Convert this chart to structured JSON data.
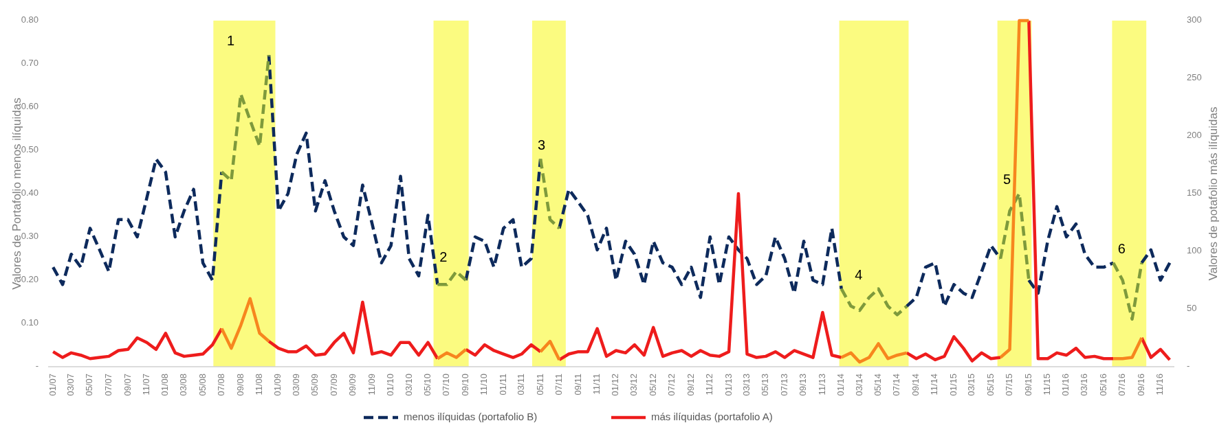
{
  "chart_data": {
    "type": "line",
    "ylabel": "Valores de Portafolio menos ilíquidas",
    "y2label": "Valores de potafolio más ilíquidas",
    "x": [
      "2007-01",
      "2007-02",
      "2007-03",
      "2007-04",
      "2007-05",
      "2007-06",
      "2007-07",
      "2007-08",
      "2007-09",
      "2007-10",
      "2007-11",
      "2007-12",
      "2008-01",
      "2008-02",
      "2008-03",
      "2008-04",
      "2008-05",
      "2008-06",
      "2008-07",
      "2008-08",
      "2008-09",
      "2008-10",
      "2008-11",
      "2008-12",
      "2009-01",
      "2009-02",
      "2009-03",
      "2009-04",
      "2009-05",
      "2009-06",
      "2009-07",
      "2009-08",
      "2009-09",
      "2009-10",
      "2009-11",
      "2009-12",
      "2010-01",
      "2010-02",
      "2010-03",
      "2010-04",
      "2010-05",
      "2010-06",
      "2010-07",
      "2010-08",
      "2010-09",
      "2010-10",
      "2010-11",
      "2010-12",
      "2011-01",
      "2011-02",
      "2011-03",
      "2011-04",
      "2011-05",
      "2011-06",
      "2011-07",
      "2011-08",
      "2011-09",
      "2011-10",
      "2011-11",
      "2011-12",
      "2012-01",
      "2012-02",
      "2012-03",
      "2012-04",
      "2012-05",
      "2012-06",
      "2012-07",
      "2012-08",
      "2012-09",
      "2012-10",
      "2012-11",
      "2012-12",
      "2013-01",
      "2013-02",
      "2013-03",
      "2013-04",
      "2013-05",
      "2013-06",
      "2013-07",
      "2013-08",
      "2013-09",
      "2013-10",
      "2013-11",
      "2013-12",
      "2014-01",
      "2014-02",
      "2014-03",
      "2014-04",
      "2014-05",
      "2014-06",
      "2014-07",
      "2014-08",
      "2014-09",
      "2014-10",
      "2014-11",
      "2014-12",
      "2015-01",
      "2015-02",
      "2015-03",
      "2015-04",
      "2015-05",
      "2015-06",
      "2015-07",
      "2015-08",
      "2015-09",
      "2015-10",
      "2015-11",
      "2015-12",
      "2016-01",
      "2016-02",
      "2016-03",
      "2016-04",
      "2016-05",
      "2016-06",
      "2016-07",
      "2016-08",
      "2016-09",
      "2016-10",
      "2016-11",
      "2016-12"
    ],
    "series": [
      {
        "name": "menos ilíquidas (portafolio B)",
        "color": "#0d2a5c",
        "line_style": "dashed",
        "axis": "y",
        "values": [
          0.23,
          0.19,
          0.26,
          0.23,
          0.32,
          0.27,
          0.22,
          0.34,
          0.34,
          0.3,
          0.39,
          0.48,
          0.45,
          0.3,
          0.36,
          0.41,
          0.24,
          0.2,
          0.45,
          null,
          null,
          null,
          null,
          0.72,
          0.36,
          0.4,
          0.49,
          0.54,
          0.36,
          0.43,
          0.36,
          0.3,
          0.28,
          0.42,
          0.33,
          0.24,
          0.28,
          0.44,
          0.25,
          0.21,
          0.35,
          0.19,
          null,
          null,
          0.2,
          0.3,
          0.29,
          0.23,
          0.32,
          0.34,
          0.23,
          0.25,
          0.48,
          null,
          0.32,
          0.41,
          0.38,
          0.35,
          0.27,
          0.32,
          0.2,
          0.29,
          0.26,
          0.19,
          0.29,
          0.24,
          0.23,
          0.19,
          0.23,
          0.16,
          0.3,
          0.19,
          0.3,
          0.27,
          0.25,
          0.19,
          0.21,
          0.3,
          0.25,
          0.17,
          0.29,
          0.2,
          0.19,
          0.32,
          0.18,
          null,
          null,
          null,
          null,
          null,
          null,
          0.14,
          0.16,
          0.23,
          0.24,
          0.14,
          0.19,
          0.17,
          0.16,
          0.22,
          0.28,
          0.25,
          null,
          null,
          0.2,
          0.17,
          0.29,
          0.37,
          0.3,
          0.33,
          0.26,
          0.23,
          0.23,
          0.24,
          null,
          null,
          0.24,
          0.27,
          0.2,
          0.24
        ]
      },
      {
        "name": "más ilíquidas (portafolio A)",
        "color": "#ee1c1c",
        "line_style": "solid",
        "axis": "y2",
        "values": [
          13,
          8,
          12,
          10,
          7,
          8,
          9,
          14,
          15,
          25,
          21,
          15,
          29,
          12,
          9,
          10,
          11,
          19,
          33,
          null,
          null,
          null,
          null,
          22,
          16,
          13,
          13,
          18,
          10,
          11,
          21,
          29,
          12,
          56,
          11,
          13,
          10,
          21,
          21,
          10,
          21,
          7,
          null,
          null,
          15,
          10,
          19,
          14,
          11,
          8,
          11,
          19,
          13,
          null,
          6,
          11,
          13,
          13,
          33,
          9,
          14,
          12,
          19,
          10,
          34,
          9,
          12,
          14,
          9,
          14,
          10,
          9,
          13,
          150,
          11,
          8,
          9,
          13,
          8,
          14,
          11,
          8,
          47,
          10,
          8,
          null,
          null,
          null,
          null,
          null,
          null,
          12,
          7,
          11,
          6,
          9,
          26,
          16,
          5,
          12,
          7,
          8,
          null,
          null,
          300,
          7,
          7,
          12,
          10,
          16,
          8,
          9,
          7,
          7,
          null,
          null,
          25,
          8,
          15,
          6
        ]
      },
      {
        "color": "#7e9a3c",
        "line_style": "dashed",
        "axis": "y",
        "x": [
          "2008-07",
          "2008-08",
          "2008-09",
          "2008-10",
          "2008-11",
          "2008-12",
          "2009-01",
          "2010-06",
          "2010-07",
          "2010-08",
          "2010-09",
          "2010-10",
          "2011-05",
          "2011-06",
          "2011-07",
          "2011-08",
          "2014-01",
          "2014-02",
          "2014-03",
          "2014-04",
          "2014-05",
          "2014-06",
          "2014-07",
          "2014-08",
          "2014-09",
          "2015-06",
          "2015-07",
          "2015-08",
          "2015-09",
          "2015-10",
          "2016-06",
          "2016-07",
          "2016-08",
          "2016-09"
        ],
        "values": [
          0.45,
          0.43,
          0.63,
          0.57,
          0.51,
          0.72,
          null,
          0.19,
          0.19,
          0.22,
          0.2,
          null,
          0.48,
          0.34,
          0.32,
          null,
          0.18,
          0.14,
          0.13,
          0.16,
          0.18,
          0.14,
          0.12,
          0.14,
          null,
          0.25,
          0.36,
          0.4,
          0.2,
          null,
          0.24,
          0.2,
          0.11,
          0.24
        ]
      },
      {
        "color": "#f7861e",
        "line_style": "solid",
        "axis": "y2",
        "x": [
          "2008-07",
          "2008-08",
          "2008-09",
          "2008-10",
          "2008-11",
          "2008-12",
          "2009-01",
          "2010-06",
          "2010-07",
          "2010-08",
          "2010-09",
          "2010-10",
          "2011-05",
          "2011-06",
          "2011-07",
          "2011-08",
          "2014-01",
          "2014-02",
          "2014-03",
          "2014-04",
          "2014-05",
          "2014-06",
          "2014-07",
          "2014-08",
          "2014-09",
          "2015-06",
          "2015-07",
          "2015-08",
          "2015-09",
          "2015-10",
          "2016-06",
          "2016-07",
          "2016-08",
          "2016-09"
        ],
        "values": [
          33,
          16,
          36,
          59,
          29,
          22,
          null,
          7,
          12,
          8,
          15,
          null,
          13,
          22,
          6,
          null,
          8,
          12,
          4,
          8,
          20,
          7,
          10,
          12,
          null,
          8,
          15,
          300,
          300,
          null,
          7,
          7,
          8,
          25
        ]
      }
    ],
    "xlim": [
      "2006-12-16",
      "2016-12-16"
    ],
    "xticks": [
      {
        "value": "2007-01",
        "label": "01/07"
      },
      {
        "value": "2007-03",
        "label": "03/07"
      },
      {
        "value": "2007-05",
        "label": "05/07"
      },
      {
        "value": "2007-07",
        "label": "07/07"
      },
      {
        "value": "2007-09",
        "label": "09/07"
      },
      {
        "value": "2007-11",
        "label": "11/07"
      },
      {
        "value": "2008-01",
        "label": "01/08"
      },
      {
        "value": "2008-03",
        "label": "03/08"
      },
      {
        "value": "2008-05",
        "label": "05/08"
      },
      {
        "value": "2008-07",
        "label": "07/08"
      },
      {
        "value": "2008-09",
        "label": "09/08"
      },
      {
        "value": "2008-11",
        "label": "11/08"
      },
      {
        "value": "2009-01",
        "label": "01/09"
      },
      {
        "value": "2009-03",
        "label": "03/09"
      },
      {
        "value": "2009-05",
        "label": "05/09"
      },
      {
        "value": "2009-07",
        "label": "07/09"
      },
      {
        "value": "2009-09",
        "label": "09/09"
      },
      {
        "value": "2009-11",
        "label": "11/09"
      },
      {
        "value": "2010-01",
        "label": "01/10"
      },
      {
        "value": "2010-03",
        "label": "03/10"
      },
      {
        "value": "2010-05",
        "label": "05/10"
      },
      {
        "value": "2010-07",
        "label": "07/10"
      },
      {
        "value": "2010-09",
        "label": "09/10"
      },
      {
        "value": "2010-11",
        "label": "11/10"
      },
      {
        "value": "2011-01",
        "label": "01/11"
      },
      {
        "value": "2011-03",
        "label": "03/11"
      },
      {
        "value": "2011-05",
        "label": "05/11"
      },
      {
        "value": "2011-07",
        "label": "07/11"
      },
      {
        "value": "2011-09",
        "label": "09/11"
      },
      {
        "value": "2011-11",
        "label": "11/11"
      },
      {
        "value": "2012-01",
        "label": "01/12"
      },
      {
        "value": "2012-03",
        "label": "03/12"
      },
      {
        "value": "2012-05",
        "label": "05/12"
      },
      {
        "value": "2012-07",
        "label": "07/12"
      },
      {
        "value": "2012-09",
        "label": "09/12"
      },
      {
        "value": "2012-11",
        "label": "11/12"
      },
      {
        "value": "2013-01",
        "label": "01/13"
      },
      {
        "value": "2013-03",
        "label": "03/13"
      },
      {
        "value": "2013-05",
        "label": "05/13"
      },
      {
        "value": "2013-07",
        "label": "07/13"
      },
      {
        "value": "2013-09",
        "label": "09/13"
      },
      {
        "value": "2013-11",
        "label": "11/13"
      },
      {
        "value": "2014-01",
        "label": "01/14"
      },
      {
        "value": "2014-03",
        "label": "03/14"
      },
      {
        "value": "2014-05",
        "label": "05/14"
      },
      {
        "value": "2014-07",
        "label": "07/14"
      },
      {
        "value": "2014-09",
        "label": "09/14"
      },
      {
        "value": "2014-11",
        "label": "11/14"
      },
      {
        "value": "2015-01",
        "label": "01/15"
      },
      {
        "value": "2015-03",
        "label": "03/15"
      },
      {
        "value": "2015-05",
        "label": "05/15"
      },
      {
        "value": "2015-07",
        "label": "07/15"
      },
      {
        "value": "2015-09",
        "label": "09/15"
      },
      {
        "value": "2015-11",
        "label": "11/15"
      },
      {
        "value": "2016-01",
        "label": "01/16"
      },
      {
        "value": "2016-03",
        "label": "03/16"
      },
      {
        "value": "2016-05",
        "label": "05/16"
      },
      {
        "value": "2016-07",
        "label": "07/16"
      },
      {
        "value": "2016-09",
        "label": "09/16"
      },
      {
        "value": "2016-11",
        "label": "11/16"
      }
    ],
    "ylim": [
      0,
      0.8
    ],
    "yticks": [
      {
        "value": 0,
        "label": "-"
      },
      {
        "value": 0.1,
        "label": "0.10"
      },
      {
        "value": 0.2,
        "label": "0.20"
      },
      {
        "value": 0.3,
        "label": "0.30"
      },
      {
        "value": 0.4,
        "label": "0.40"
      },
      {
        "value": 0.5,
        "label": "0.50"
      },
      {
        "value": 0.6,
        "label": "0.60"
      },
      {
        "value": 0.7,
        "label": "0.70"
      },
      {
        "value": 0.8,
        "label": "0.80"
      }
    ],
    "y2lim": [
      0,
      300
    ],
    "y2ticks": [
      {
        "value": 0,
        "label": "-"
      },
      50,
      100,
      150,
      200,
      250,
      300
    ],
    "bands": [
      {
        "axis": "x",
        "from": "2008-06-04",
        "to": "2008-12-22",
        "color": "#fbfb80",
        "label": "1"
      },
      {
        "axis": "x",
        "from": "2010-05-19",
        "to": "2010-09-10",
        "color": "#fbfb80",
        "label": "2"
      },
      {
        "axis": "x",
        "from": "2011-04-04",
        "to": "2011-07-22",
        "color": "#fbfb80",
        "label": "3"
      },
      {
        "axis": "x",
        "from": "2013-12-25",
        "to": "2014-08-07",
        "color": "#fbfb80",
        "label": "4"
      },
      {
        "axis": "x",
        "from": "2015-05-22",
        "to": "2015-09-10",
        "color": "#fbfb80",
        "label": "5"
      },
      {
        "axis": "x",
        "from": "2016-05-28",
        "to": "2016-09-16",
        "color": "#fbfb80",
        "label": "6"
      }
    ],
    "grid": false,
    "legend": "bottom"
  }
}
